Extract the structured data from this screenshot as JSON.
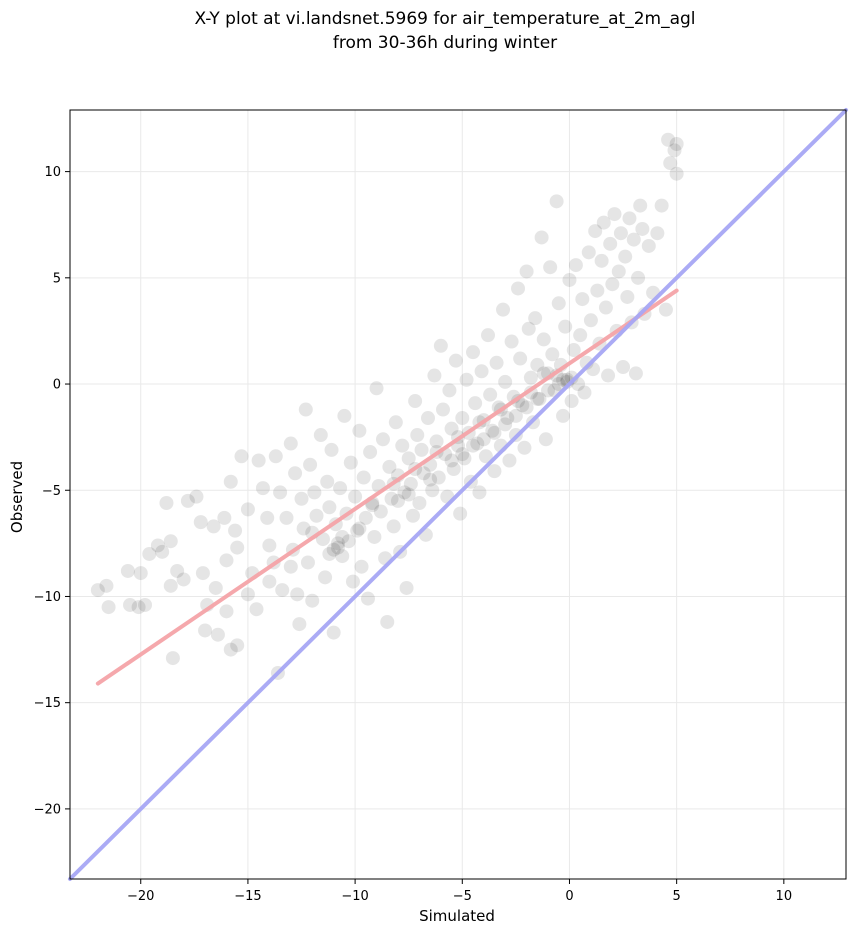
{
  "chart_data": {
    "type": "scatter",
    "title_lines": [
      "X-Y plot at vi.landsnet.5969 for air_temperature_at_2m_agl",
      "from 30-36h during winter"
    ],
    "xlabel": "Simulated",
    "ylabel": "Observed",
    "xlim": [
      -23.3,
      12.9
    ],
    "ylim": [
      -23.3,
      12.9
    ],
    "x_ticks": [
      -20,
      -15,
      -10,
      -5,
      0,
      5,
      10
    ],
    "y_ticks": [
      -20,
      -15,
      -10,
      -5,
      0,
      5,
      10
    ],
    "x_tick_labels": [
      "−20",
      "−15",
      "−10",
      "−5",
      "0",
      "5",
      "10"
    ],
    "y_tick_labels": [
      "−20",
      "−15",
      "−10",
      "−5",
      "0",
      "5",
      "10"
    ],
    "grid": true,
    "point_color": "#000000",
    "point_alpha": 0.1,
    "point_radius": 7,
    "points": [
      [
        -22.0,
        -9.7
      ],
      [
        -21.5,
        -10.5
      ],
      [
        -21.6,
        -9.5
      ],
      [
        -20.6,
        -8.8
      ],
      [
        -20.5,
        -10.4
      ],
      [
        -20.1,
        -10.5
      ],
      [
        -20.0,
        -8.9
      ],
      [
        -19.8,
        -10.4
      ],
      [
        -19.6,
        -8.0
      ],
      [
        -19.2,
        -7.6
      ],
      [
        -18.8,
        -5.6
      ],
      [
        -19.0,
        -7.9
      ],
      [
        -18.6,
        -7.4
      ],
      [
        -18.6,
        -9.5
      ],
      [
        -18.3,
        -8.8
      ],
      [
        -18.5,
        -12.9
      ],
      [
        -18.0,
        -9.2
      ],
      [
        -17.8,
        -5.5
      ],
      [
        -17.4,
        -5.3
      ],
      [
        -17.2,
        -6.5
      ],
      [
        -17.1,
        -8.9
      ],
      [
        -16.9,
        -10.4
      ],
      [
        -17.0,
        -11.6
      ],
      [
        -16.6,
        -6.7
      ],
      [
        -16.5,
        -9.6
      ],
      [
        -16.4,
        -11.8
      ],
      [
        -16.1,
        -6.3
      ],
      [
        -16.0,
        -8.3
      ],
      [
        -15.8,
        -4.6
      ],
      [
        -15.6,
        -6.9
      ],
      [
        -15.5,
        -7.7
      ],
      [
        -15.8,
        -12.5
      ],
      [
        -15.5,
        -12.3
      ],
      [
        -15.3,
        -3.4
      ],
      [
        -15.0,
        -5.9
      ],
      [
        -14.8,
        -8.9
      ],
      [
        -14.6,
        -10.6
      ],
      [
        -14.5,
        -3.6
      ],
      [
        -14.3,
        -4.9
      ],
      [
        -14.1,
        -6.3
      ],
      [
        -14.0,
        -7.6
      ],
      [
        -13.8,
        -8.4
      ],
      [
        -13.7,
        -3.4
      ],
      [
        -13.5,
        -5.1
      ],
      [
        -13.4,
        -9.7
      ],
      [
        -13.6,
        -13.6
      ],
      [
        -13.2,
        -6.3
      ],
      [
        -13.0,
        -2.8
      ],
      [
        -12.9,
        -7.8
      ],
      [
        -12.8,
        -4.2
      ],
      [
        -12.7,
        -9.9
      ],
      [
        -12.6,
        -11.3
      ],
      [
        -12.5,
        -5.4
      ],
      [
        -12.4,
        -6.8
      ],
      [
        -12.3,
        -1.2
      ],
      [
        -12.2,
        -8.4
      ],
      [
        -12.1,
        -3.8
      ],
      [
        -12.0,
        -10.2
      ],
      [
        -11.9,
        -5.1
      ],
      [
        -11.8,
        -6.2
      ],
      [
        -11.6,
        -2.4
      ],
      [
        -11.5,
        -7.3
      ],
      [
        -11.4,
        -9.1
      ],
      [
        -11.3,
        -4.6
      ],
      [
        -11.2,
        -5.8
      ],
      [
        -11.1,
        -3.1
      ],
      [
        -11.0,
        -11.7
      ],
      [
        -10.9,
        -6.6
      ],
      [
        -10.8,
        -7.7
      ],
      [
        -10.7,
        -4.9
      ],
      [
        -10.6,
        -8.1
      ],
      [
        -10.5,
        -1.5
      ],
      [
        -10.4,
        -6.1
      ],
      [
        -10.3,
        -7.4
      ],
      [
        -10.2,
        -3.7
      ],
      [
        -10.1,
        -9.3
      ],
      [
        -10.0,
        -5.3
      ],
      [
        -9.9,
        -6.9
      ],
      [
        -9.8,
        -2.2
      ],
      [
        -9.7,
        -8.6
      ],
      [
        -9.6,
        -4.4
      ],
      [
        -9.5,
        -6.3
      ],
      [
        -9.4,
        -10.1
      ],
      [
        -9.3,
        -3.2
      ],
      [
        -9.2,
        -5.7
      ],
      [
        -9.1,
        -7.2
      ],
      [
        -9.0,
        -0.2
      ],
      [
        -8.9,
        -4.8
      ],
      [
        -8.8,
        -6.0
      ],
      [
        -8.7,
        -2.6
      ],
      [
        -8.6,
        -8.2
      ],
      [
        -8.5,
        -11.2
      ],
      [
        -8.4,
        -3.9
      ],
      [
        -8.3,
        -5.4
      ],
      [
        -8.2,
        -6.7
      ],
      [
        -8.1,
        -1.8
      ],
      [
        -8.0,
        -4.3
      ],
      [
        -7.9,
        -7.9
      ],
      [
        -7.8,
        -2.9
      ],
      [
        -7.7,
        -5.1
      ],
      [
        -7.6,
        -9.6
      ],
      [
        -7.5,
        -3.5
      ],
      [
        -7.4,
        -4.7
      ],
      [
        -7.3,
        -6.2
      ],
      [
        -7.2,
        -0.8
      ],
      [
        -7.1,
        -2.4
      ],
      [
        -7.0,
        -5.6
      ],
      [
        -6.9,
        -3.1
      ],
      [
        -6.8,
        -4.2
      ],
      [
        -6.7,
        -7.1
      ],
      [
        -6.6,
        -1.6
      ],
      [
        -6.5,
        -3.8
      ],
      [
        -6.4,
        -5.0
      ],
      [
        -6.3,
        0.4
      ],
      [
        -6.2,
        -2.7
      ],
      [
        -6.1,
        -4.4
      ],
      [
        -6.0,
        1.8
      ],
      [
        -5.9,
        -1.2
      ],
      [
        -5.8,
        -3.3
      ],
      [
        -5.7,
        -5.3
      ],
      [
        -5.6,
        -0.3
      ],
      [
        -5.5,
        -2.1
      ],
      [
        -5.4,
        -4.0
      ],
      [
        -5.3,
        1.1
      ],
      [
        -5.2,
        -2.9
      ],
      [
        -5.1,
        -6.1
      ],
      [
        -5.0,
        -1.6
      ],
      [
        -4.9,
        -3.5
      ],
      [
        -4.8,
        0.2
      ],
      [
        -4.7,
        -2.3
      ],
      [
        -4.6,
        -4.6
      ],
      [
        -4.5,
        1.5
      ],
      [
        -4.4,
        -0.9
      ],
      [
        -4.3,
        -2.8
      ],
      [
        -4.2,
        -5.1
      ],
      [
        -4.1,
        0.6
      ],
      [
        -4.0,
        -1.7
      ],
      [
        -3.9,
        -3.4
      ],
      [
        -3.8,
        2.3
      ],
      [
        -3.7,
        -0.5
      ],
      [
        -3.6,
        -2.2
      ],
      [
        -3.5,
        -4.1
      ],
      [
        -3.4,
        1.0
      ],
      [
        -3.3,
        -1.1
      ],
      [
        -3.2,
        -2.9
      ],
      [
        -3.1,
        3.5
      ],
      [
        -3.0,
        0.1
      ],
      [
        -2.9,
        -1.6
      ],
      [
        -2.8,
        -3.6
      ],
      [
        -2.7,
        2.0
      ],
      [
        -2.6,
        -0.6
      ],
      [
        -2.5,
        -2.4
      ],
      [
        -2.4,
        4.5
      ],
      [
        -2.3,
        1.2
      ],
      [
        -2.2,
        -1.0
      ],
      [
        -2.1,
        -3.0
      ],
      [
        -2.0,
        5.3
      ],
      [
        -1.9,
        2.6
      ],
      [
        -1.8,
        0.3
      ],
      [
        -1.7,
        -1.8
      ],
      [
        -1.6,
        3.1
      ],
      [
        -1.5,
        0.9
      ],
      [
        -1.4,
        -0.7
      ],
      [
        -1.3,
        6.9
      ],
      [
        -1.2,
        2.1
      ],
      [
        -1.1,
        -2.6
      ],
      [
        -1.0,
        0.5
      ],
      [
        -0.9,
        5.5
      ],
      [
        -0.8,
        1.4
      ],
      [
        -0.7,
        -0.3
      ],
      [
        -0.6,
        8.6
      ],
      [
        -0.5,
        3.8
      ],
      [
        -0.4,
        0.9
      ],
      [
        -0.3,
        -1.5
      ],
      [
        -0.2,
        2.7
      ],
      [
        -0.1,
        0.2
      ],
      [
        0.0,
        4.9
      ],
      [
        0.1,
        -0.8
      ],
      [
        0.2,
        1.6
      ],
      [
        0.3,
        5.6
      ],
      [
        0.4,
        0.0
      ],
      [
        0.5,
        2.3
      ],
      [
        0.6,
        4.0
      ],
      [
        0.7,
        -0.4
      ],
      [
        0.8,
        1.0
      ],
      [
        0.9,
        6.2
      ],
      [
        1.0,
        3.0
      ],
      [
        1.1,
        0.7
      ],
      [
        1.2,
        7.2
      ],
      [
        1.3,
        4.4
      ],
      [
        1.4,
        1.9
      ],
      [
        1.5,
        5.8
      ],
      [
        1.6,
        7.6
      ],
      [
        1.7,
        3.6
      ],
      [
        1.8,
        0.4
      ],
      [
        1.9,
        6.6
      ],
      [
        2.0,
        4.7
      ],
      [
        2.1,
        8.0
      ],
      [
        2.2,
        2.5
      ],
      [
        2.3,
        5.3
      ],
      [
        2.4,
        7.1
      ],
      [
        2.5,
        0.8
      ],
      [
        2.6,
        6.0
      ],
      [
        2.7,
        4.1
      ],
      [
        2.8,
        7.8
      ],
      [
        2.9,
        2.9
      ],
      [
        3.0,
        6.8
      ],
      [
        3.1,
        0.5
      ],
      [
        3.2,
        5.0
      ],
      [
        3.3,
        8.4
      ],
      [
        3.4,
        7.3
      ],
      [
        3.5,
        3.3
      ],
      [
        3.7,
        6.5
      ],
      [
        3.9,
        4.3
      ],
      [
        4.1,
        7.1
      ],
      [
        4.3,
        8.4
      ],
      [
        4.5,
        3.5
      ],
      [
        4.6,
        11.5
      ],
      [
        4.7,
        10.4
      ],
      [
        4.9,
        11.0
      ],
      [
        5.0,
        9.9
      ],
      [
        5.0,
        11.3
      ],
      [
        -11.0,
        -7.8
      ],
      [
        -10.8,
        -7.5
      ],
      [
        -11.2,
        -8.0
      ],
      [
        -10.6,
        -7.2
      ],
      [
        -9.8,
        -6.8
      ],
      [
        -8.0,
        -5.5
      ],
      [
        -7.5,
        -5.2
      ],
      [
        -6.5,
        -4.5
      ],
      [
        -5.5,
        -3.6
      ],
      [
        -5.0,
        -3.3
      ],
      [
        -4.5,
        -2.9
      ],
      [
        -4.0,
        -2.6
      ],
      [
        -3.5,
        -2.3
      ],
      [
        -3.0,
        -1.9
      ],
      [
        -2.5,
        -1.5
      ],
      [
        -2.0,
        -1.1
      ],
      [
        -1.5,
        -0.7
      ],
      [
        -1.0,
        -0.3
      ],
      [
        -0.5,
        0.0
      ],
      [
        -0.3,
        0.2
      ],
      [
        -0.1,
        0.1
      ],
      [
        0.1,
        0.3
      ],
      [
        -0.6,
        0.4
      ],
      [
        -1.2,
        0.5
      ],
      [
        -1.8,
        -0.4
      ],
      [
        -2.4,
        -0.8
      ],
      [
        -3.2,
        -1.2
      ],
      [
        -4.2,
        -1.8
      ],
      [
        -5.2,
        -2.5
      ],
      [
        -6.2,
        -3.2
      ],
      [
        -7.2,
        -4.0
      ],
      [
        -8.2,
        -4.7
      ],
      [
        -9.2,
        -5.6
      ],
      [
        -12.0,
        -7.0
      ],
      [
        -13.0,
        -8.6
      ],
      [
        -14.0,
        -9.3
      ],
      [
        -15.0,
        -9.9
      ],
      [
        -16.0,
        -10.7
      ]
    ],
    "series": [
      {
        "name": "",
        "kind": "fit-line",
        "color": "#f4a3a8",
        "x": [
          -22.0,
          5.0
        ],
        "y": [
          -14.1,
          4.4
        ]
      },
      {
        "name": "",
        "kind": "one-to-one-line",
        "color": "#a7a7f4",
        "x": [
          -23.3,
          12.9
        ],
        "y": [
          -23.3,
          12.9
        ]
      }
    ]
  }
}
